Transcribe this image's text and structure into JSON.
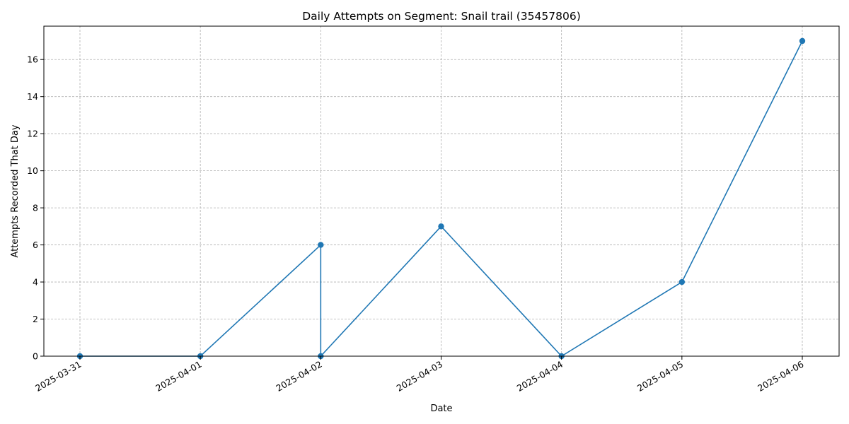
{
  "chart_data": {
    "type": "line",
    "title": "Daily Attempts on Segment: Snail trail (35457806)",
    "xlabel": "Date",
    "ylabel": "Attempts Recorded That Day",
    "x": [
      "2025-03-31",
      "2025-04-01",
      "2025-04-02",
      "2025-04-02",
      "2025-04-03",
      "2025-04-04",
      "2025-04-05",
      "2025-04-06"
    ],
    "series": [
      {
        "values": [
          0,
          0,
          6,
          0,
          7,
          0,
          4,
          17
        ],
        "color": "#1f77b4",
        "marker": "circle"
      }
    ],
    "x_ticks": [
      "2025-03-31",
      "2025-04-01",
      "2025-04-02",
      "2025-04-03",
      "2025-04-04",
      "2025-04-05",
      "2025-04-06"
    ],
    "y_ticks": [
      0,
      2,
      4,
      6,
      8,
      10,
      12,
      14,
      16
    ],
    "ylim": [
      0,
      17.8
    ],
    "grid": true,
    "x_tick_rotation": "slanted"
  }
}
